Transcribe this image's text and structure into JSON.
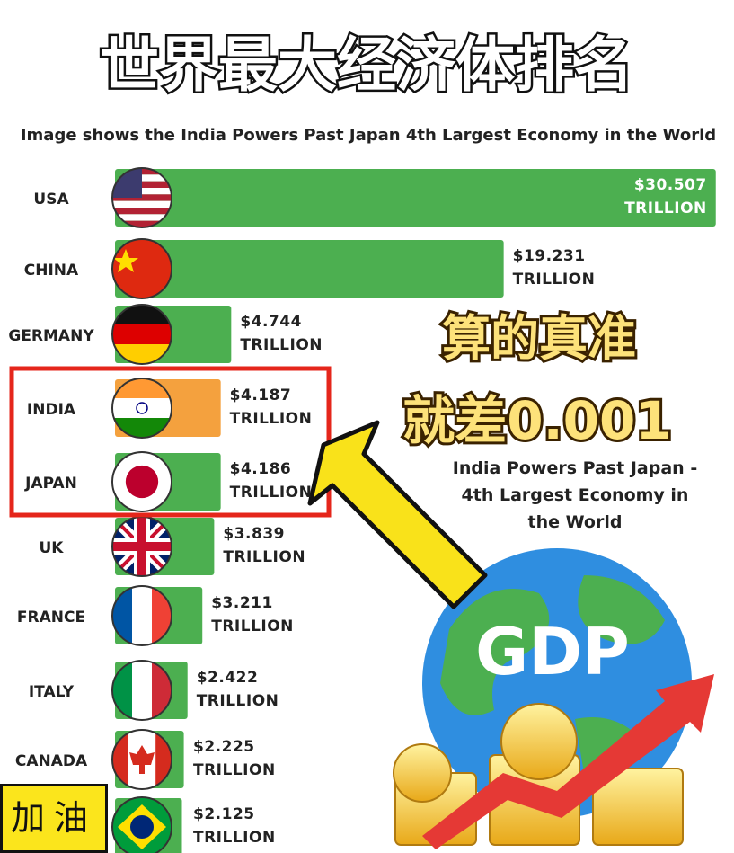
{
  "chart_data": {
    "type": "bar",
    "orientation": "horizontal",
    "title": "世界最大经济体排名",
    "subtitle": "Image shows the India Powers Past Japan 4th Largest Economy in the World",
    "categories": [
      "USA",
      "CHINA",
      "GERMANY",
      "INDIA",
      "JAPAN",
      "UK",
      "FRANCE",
      "ITALY",
      "CANADA",
      null
    ],
    "values": [
      30.507,
      19.231,
      4.744,
      4.187,
      4.186,
      3.839,
      3.211,
      2.422,
      2.225,
      2.125
    ],
    "value_labels": [
      "$30.507 TRILLION",
      "$19.231 TRILLION",
      "$4.744 TRILLION",
      "$4.187 TRILLION",
      "$4.186 TRILLION",
      "$3.839 TRILLION",
      "$3.211 TRILLION",
      "$2.422 TRILLION",
      "$2.225 TRILLION",
      "$2.125 TRILLION"
    ],
    "colors": [
      "#4caf50",
      "#4caf50",
      "#4caf50",
      "#f4a13e",
      "#4caf50",
      "#4caf50",
      "#4caf50",
      "#4caf50",
      "#4caf50",
      "#4caf50"
    ],
    "xlim": [
      0,
      32
    ],
    "annotations": [
      "算的真准",
      "就差0.001",
      "India Powers Past Japan - 4th Largest Economy in the World",
      "GDP",
      "加油"
    ]
  }
}
